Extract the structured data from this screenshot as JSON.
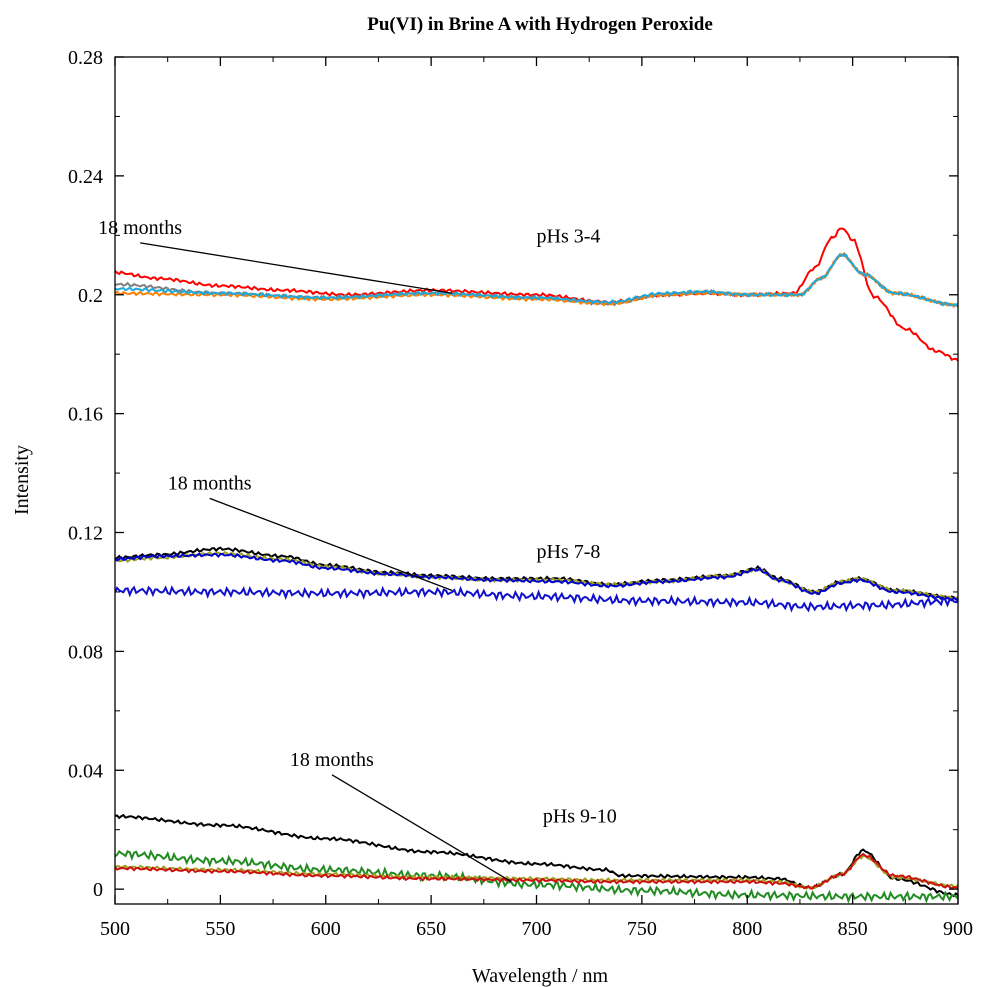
{
  "chart_data": {
    "type": "line",
    "title": "Pu(VI) in Brine A with Hydrogen Peroxide",
    "xlabel": "Wavelength / nm",
    "ylabel": "Intensity",
    "xlim": [
      500,
      900
    ],
    "ylim": [
      -0.005,
      0.28
    ],
    "x_ticks": [
      500,
      550,
      600,
      650,
      700,
      750,
      800,
      850,
      900
    ],
    "x_tick_labels": [
      "500",
      "550",
      "600",
      "650",
      "700",
      "750",
      "800",
      "850",
      "900"
    ],
    "y_ticks": [
      0,
      0.04,
      0.08,
      0.12,
      0.16,
      0.2,
      0.24,
      0.28
    ],
    "y_tick_labels": [
      "0",
      "0.04",
      "0.08",
      "0.12",
      "0.16",
      "0.2",
      "0.24",
      "0.28"
    ],
    "grid": false,
    "legend": "none",
    "annotations": [
      {
        "text": "18 months",
        "x": 492,
        "y": 0.2205,
        "arrow_to": [
          660,
          0.2005
        ]
      },
      {
        "text": "pHs 3-4",
        "x": 700,
        "y": 0.2175
      },
      {
        "text": "18 months",
        "x": 525,
        "y": 0.1345,
        "arrow_to": [
          660,
          0.1005
        ]
      },
      {
        "text": "pHs 7-8",
        "x": 700,
        "y": 0.1115
      },
      {
        "text": "18 months",
        "x": 583,
        "y": 0.0415,
        "arrow_to": [
          688,
          0.0025
        ]
      },
      {
        "text": "pHs 9-10",
        "x": 703,
        "y": 0.0225
      }
    ],
    "series": [
      {
        "color": "#ff0000",
        "x": [
          500,
          520,
          550,
          580,
          610,
          650,
          700,
          735,
          760,
          780,
          800,
          822,
          832,
          840,
          845,
          850,
          860,
          875,
          890,
          900
        ],
        "y": [
          0.2075,
          0.2055,
          0.203,
          0.2015,
          0.2,
          0.2015,
          0.2,
          0.1975,
          0.2,
          0.2005,
          0.2,
          0.2005,
          0.209,
          0.219,
          0.2225,
          0.2185,
          0.1995,
          0.1885,
          0.181,
          0.178
        ]
      },
      {
        "color": "#808080",
        "x": [
          500,
          550,
          600,
          650,
          700,
          735,
          760,
          780,
          800,
          825,
          835,
          845,
          855,
          870,
          900
        ],
        "y": [
          0.2035,
          0.2005,
          0.199,
          0.2005,
          0.199,
          0.197,
          0.2,
          0.201,
          0.2,
          0.2,
          0.2055,
          0.2135,
          0.207,
          0.2005,
          0.1965
        ]
      },
      {
        "color": "#ff8000",
        "x": [
          500,
          550,
          600,
          650,
          700,
          735,
          760,
          780,
          800,
          825,
          835,
          845,
          855,
          870,
          900
        ],
        "y": [
          0.2005,
          0.2,
          0.1985,
          0.2,
          0.1985,
          0.197,
          0.2,
          0.2005,
          0.2,
          0.2,
          0.2055,
          0.2135,
          0.207,
          0.2005,
          0.1965
        ]
      },
      {
        "color": "#20a8d8",
        "x": [
          500,
          550,
          600,
          650,
          700,
          735,
          760,
          780,
          800,
          825,
          835,
          845,
          855,
          870,
          900
        ],
        "y": [
          0.202,
          0.2005,
          0.199,
          0.2005,
          0.199,
          0.1975,
          0.2005,
          0.201,
          0.2,
          0.2,
          0.2055,
          0.2135,
          0.207,
          0.2005,
          0.1965
        ]
      },
      {
        "color": "#000000",
        "x": [
          500,
          520,
          550,
          580,
          600,
          630,
          650,
          680,
          710,
          735,
          760,
          790,
          805,
          815,
          832,
          845,
          853,
          870,
          900
        ],
        "y": [
          0.1115,
          0.1125,
          0.1145,
          0.112,
          0.109,
          0.1065,
          0.1055,
          0.1045,
          0.1045,
          0.1025,
          0.104,
          0.1055,
          0.108,
          0.1045,
          0.1,
          0.1035,
          0.1045,
          0.1005,
          0.098
        ]
      },
      {
        "color": "#a0a020",
        "x": [
          500,
          520,
          550,
          580,
          600,
          630,
          650,
          680,
          710,
          735,
          760,
          790,
          805,
          815,
          832,
          845,
          853,
          870,
          900
        ],
        "y": [
          0.1105,
          0.1115,
          0.113,
          0.111,
          0.1085,
          0.106,
          0.105,
          0.104,
          0.104,
          0.1025,
          0.1035,
          0.1055,
          0.1075,
          0.104,
          0.1,
          0.1035,
          0.1045,
          0.1005,
          0.098
        ]
      },
      {
        "color": "#0000cc",
        "x": [
          500,
          520,
          550,
          580,
          600,
          630,
          650,
          680,
          710,
          735,
          760,
          790,
          805,
          815,
          832,
          845,
          853,
          870,
          900
        ],
        "y": [
          0.111,
          0.112,
          0.1125,
          0.1105,
          0.108,
          0.106,
          0.105,
          0.104,
          0.1035,
          0.102,
          0.1035,
          0.105,
          0.1075,
          0.104,
          0.0995,
          0.103,
          0.104,
          0.1,
          0.0975
        ]
      },
      {
        "color": "#1010cc",
        "x": [
          500,
          550,
          600,
          650,
          700,
          750,
          800,
          830,
          860,
          900
        ],
        "y": [
          0.1005,
          0.1,
          0.0995,
          0.1,
          0.0985,
          0.097,
          0.0965,
          0.095,
          0.0955,
          0.097
        ]
      },
      {
        "color": "#000000",
        "x": [
          500,
          550,
          600,
          650,
          700,
          733,
          740,
          800,
          815,
          830,
          845,
          855,
          870,
          900
        ],
        "y": [
          0.0245,
          0.0215,
          0.017,
          0.0125,
          0.0085,
          0.0065,
          0.0045,
          0.004,
          0.0035,
          0.0005,
          0.005,
          0.013,
          0.0035,
          -0.002
        ]
      },
      {
        "color": "#228b22",
        "x": [
          500,
          550,
          600,
          650,
          700,
          750,
          800,
          850,
          900
        ],
        "y": [
          0.012,
          0.0095,
          0.0065,
          0.0045,
          0.0015,
          -0.0005,
          -0.002,
          -0.0025,
          -0.0025
        ]
      },
      {
        "color": "#a0a020",
        "x": [
          500,
          550,
          600,
          650,
          700,
          730,
          760,
          800,
          815,
          830,
          845,
          855,
          870,
          900
        ],
        "y": [
          0.0075,
          0.0065,
          0.005,
          0.004,
          0.0035,
          0.003,
          0.003,
          0.003,
          0.0025,
          0.0005,
          0.005,
          0.011,
          0.004,
          0.001
        ]
      },
      {
        "color": "#cc1010",
        "x": [
          500,
          550,
          600,
          650,
          700,
          730,
          760,
          800,
          815,
          830,
          845,
          855,
          870,
          900
        ],
        "y": [
          0.007,
          0.006,
          0.0045,
          0.0035,
          0.003,
          0.0025,
          0.0025,
          0.0025,
          0.002,
          0.0005,
          0.005,
          0.0115,
          0.0045,
          0.0005
        ]
      }
    ]
  }
}
